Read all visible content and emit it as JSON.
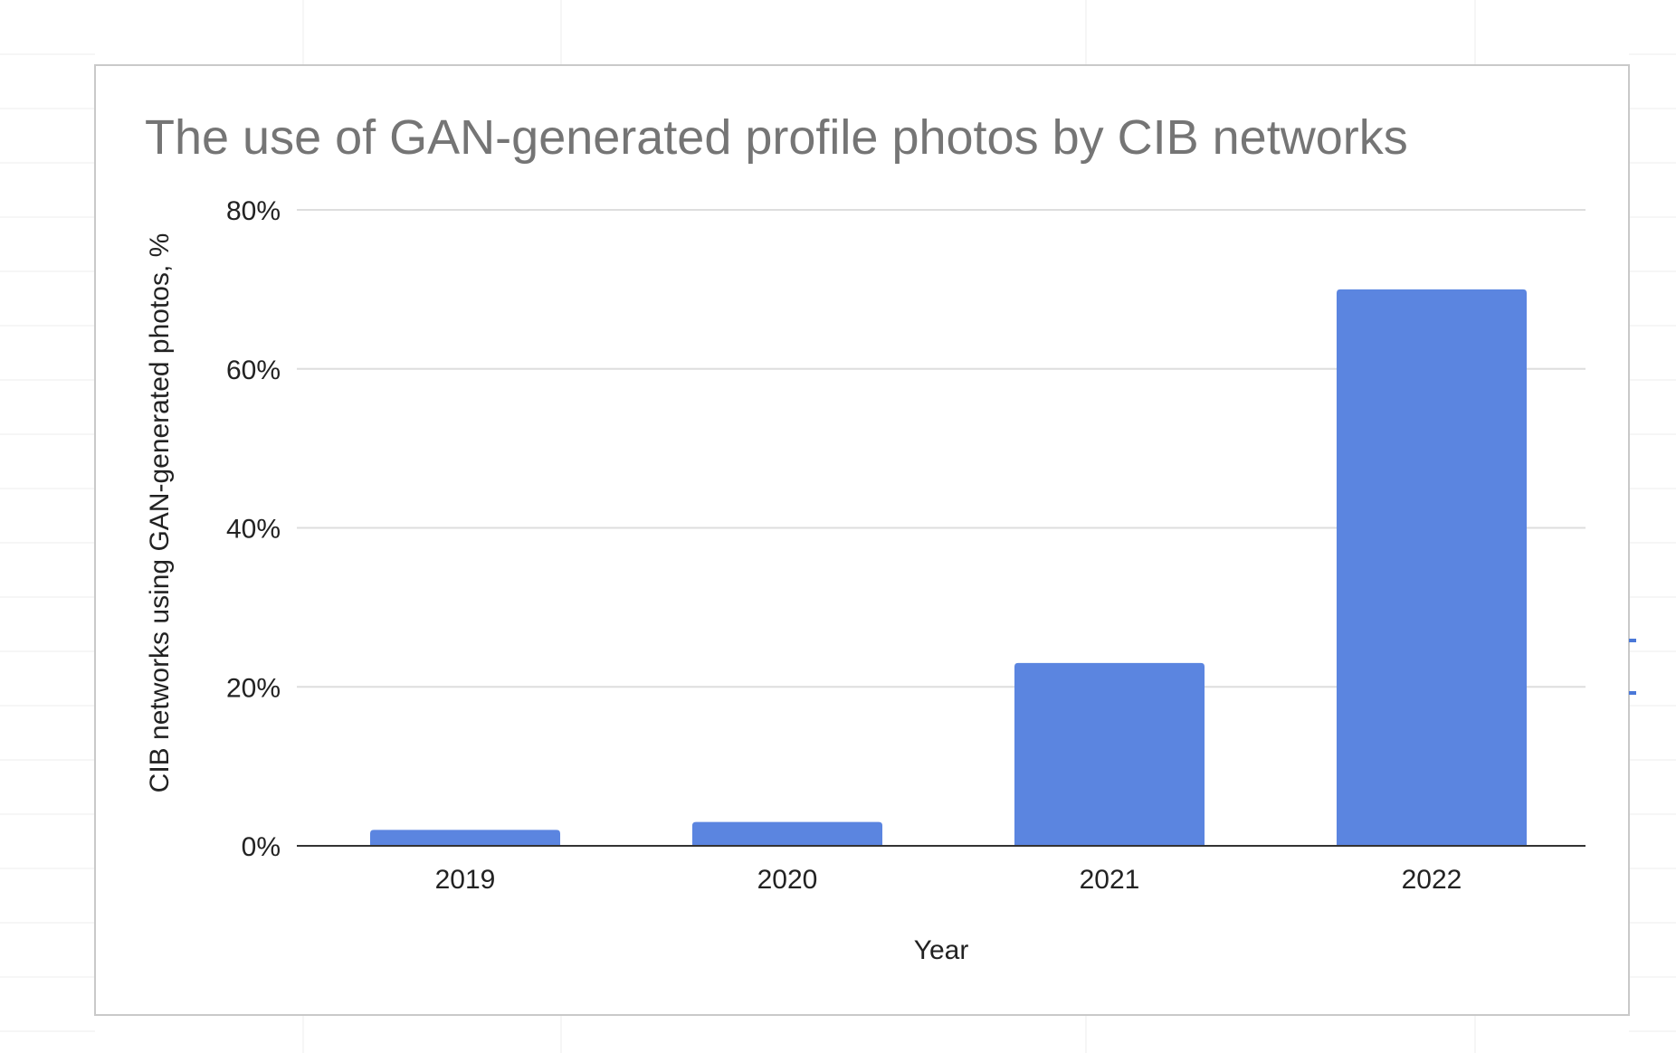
{
  "colors": {
    "bar": "#5b85e0",
    "gridline": "#dedede",
    "baseline": "#333333",
    "title": "#757575",
    "frame": "#c9c9c9",
    "background_grid": "#ececec",
    "edge_marker": "#4a78d8"
  },
  "chart_data": {
    "type": "bar",
    "title": "The use of GAN-generated profile photos by CIB networks",
    "xlabel": "Year",
    "ylabel": "CIB networks using GAN-generated photos, %",
    "categories": [
      "2019",
      "2020",
      "2021",
      "2022"
    ],
    "values": [
      2,
      3,
      23,
      70
    ],
    "ylim": [
      0,
      80
    ],
    "yticks": [
      0,
      20,
      40,
      60,
      80
    ],
    "ytick_labels": [
      "0%",
      "20%",
      "40%",
      "60%",
      "80%"
    ],
    "grid": true,
    "legend": "none"
  }
}
